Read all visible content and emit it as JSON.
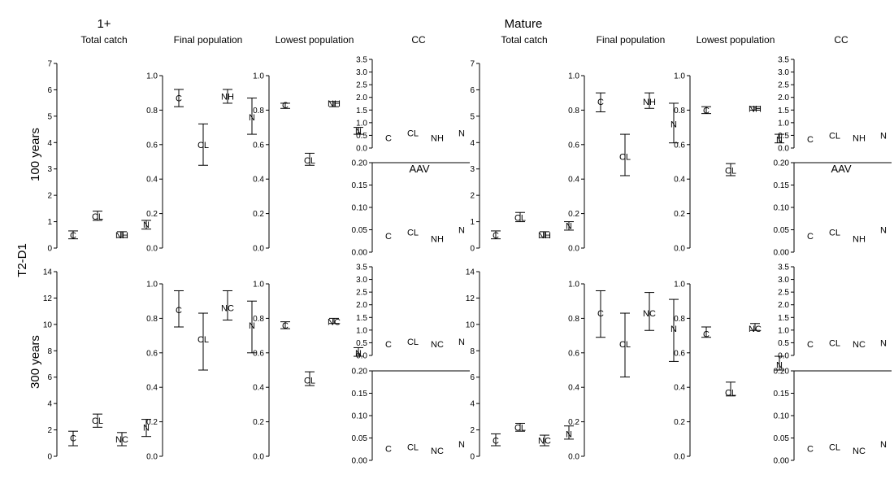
{
  "figure": {
    "group_labels": [
      "1+",
      "Mature"
    ],
    "column_titles": [
      "Total catch",
      "Final population",
      "Lowest population",
      "CC",
      "Total catch",
      "Final population",
      "Lowest population",
      "CC"
    ],
    "row_labels": [
      "100 years",
      "300 years"
    ],
    "side_label": "T2-D1",
    "aav_label": "AAV"
  },
  "chart_data": [
    {
      "type": "scatter",
      "group": "1+",
      "row": "100 years",
      "metric": "Total catch",
      "ylim": [
        0,
        7
      ],
      "yticks": [
        0,
        1,
        2,
        3,
        4,
        5,
        6,
        7
      ],
      "points": [
        {
          "label": "C",
          "y": 0.5,
          "low": 0.35,
          "high": 0.65
        },
        {
          "label": "CL",
          "y": 1.2,
          "low": 1.05,
          "high": 1.4
        },
        {
          "label": "NH",
          "y": 0.5,
          "low": 0.4,
          "high": 0.62
        },
        {
          "label": "N",
          "y": 0.9,
          "low": 0.72,
          "high": 1.05
        }
      ]
    },
    {
      "type": "scatter",
      "group": "1+",
      "row": "100 years",
      "metric": "Final population",
      "ylim": [
        0,
        1
      ],
      "yticks": [
        0.0,
        0.2,
        0.4,
        0.6,
        0.8,
        1.0
      ],
      "points": [
        {
          "label": "C",
          "y": 0.87,
          "low": 0.82,
          "high": 0.92
        },
        {
          "label": "CL",
          "y": 0.6,
          "low": 0.48,
          "high": 0.72
        },
        {
          "label": "NH",
          "y": 0.88,
          "low": 0.84,
          "high": 0.92
        },
        {
          "label": "N",
          "y": 0.76,
          "low": 0.66,
          "high": 0.87
        }
      ]
    },
    {
      "type": "scatter",
      "group": "1+",
      "row": "100 years",
      "metric": "Lowest population",
      "ylim": [
        0,
        1
      ],
      "yticks": [
        0.0,
        0.2,
        0.4,
        0.6,
        0.8,
        1.0
      ],
      "points": [
        {
          "label": "C",
          "y": 0.83,
          "low": 0.81,
          "high": 0.84
        },
        {
          "label": "CL",
          "y": 0.51,
          "low": 0.48,
          "high": 0.55
        },
        {
          "label": "NH",
          "y": 0.84,
          "low": 0.82,
          "high": 0.85
        },
        {
          "label": "N",
          "y": 0.68,
          "low": 0.66,
          "high": 0.7
        }
      ]
    },
    {
      "type": "scatter",
      "group": "1+",
      "row": "100 years",
      "metric": "CC",
      "ylim": [
        0,
        3.5
      ],
      "yticks": [
        0.0,
        0.5,
        1.0,
        1.5,
        2.0,
        2.5,
        3.0,
        3.5
      ],
      "points": [
        {
          "label": "C",
          "y": 0.4
        },
        {
          "label": "CL",
          "y": 0.6
        },
        {
          "label": "NH",
          "y": 0.4
        },
        {
          "label": "N",
          "y": 0.6
        }
      ]
    },
    {
      "type": "scatter",
      "group": "1+",
      "row": "100 years",
      "metric": "AAV",
      "ylim": [
        0,
        0.2
      ],
      "yticks": [
        0.0,
        0.05,
        0.1,
        0.15,
        0.2
      ],
      "points": [
        {
          "label": "C",
          "y": 0.036
        },
        {
          "label": "CL",
          "y": 0.045
        },
        {
          "label": "NH",
          "y": 0.03
        },
        {
          "label": "N",
          "y": 0.05
        }
      ]
    },
    {
      "type": "scatter",
      "group": "Mature",
      "row": "100 years",
      "metric": "Total catch",
      "ylim": [
        0,
        7
      ],
      "yticks": [
        0,
        1,
        2,
        3,
        4,
        5,
        6,
        7
      ],
      "points": [
        {
          "label": "C",
          "y": 0.5,
          "low": 0.35,
          "high": 0.65
        },
        {
          "label": "CL",
          "y": 1.15,
          "low": 1.0,
          "high": 1.35
        },
        {
          "label": "NH",
          "y": 0.5,
          "low": 0.4,
          "high": 0.62
        },
        {
          "label": "N",
          "y": 0.85,
          "low": 0.68,
          "high": 1.0
        }
      ]
    },
    {
      "type": "scatter",
      "group": "Mature",
      "row": "100 years",
      "metric": "Final population",
      "ylim": [
        0,
        1
      ],
      "yticks": [
        0.0,
        0.2,
        0.4,
        0.6,
        0.8,
        1.0
      ],
      "points": [
        {
          "label": "C",
          "y": 0.85,
          "low": 0.79,
          "high": 0.9
        },
        {
          "label": "CL",
          "y": 0.53,
          "low": 0.42,
          "high": 0.66
        },
        {
          "label": "NH",
          "y": 0.85,
          "low": 0.81,
          "high": 0.9
        },
        {
          "label": "N",
          "y": 0.72,
          "low": 0.61,
          "high": 0.84
        }
      ]
    },
    {
      "type": "scatter",
      "group": "Mature",
      "row": "100 years",
      "metric": "Lowest population",
      "ylim": [
        0,
        1
      ],
      "yticks": [
        0.0,
        0.2,
        0.4,
        0.6,
        0.8,
        1.0
      ],
      "points": [
        {
          "label": "C",
          "y": 0.8,
          "low": 0.78,
          "high": 0.82
        },
        {
          "label": "CL",
          "y": 0.45,
          "low": 0.42,
          "high": 0.49
        },
        {
          "label": "NH",
          "y": 0.81,
          "low": 0.8,
          "high": 0.82
        },
        {
          "label": "N",
          "y": 0.63,
          "low": 0.61,
          "high": 0.66
        }
      ]
    },
    {
      "type": "scatter",
      "group": "Mature",
      "row": "100 years",
      "metric": "CC",
      "ylim": [
        0,
        3.5
      ],
      "yticks": [
        0.0,
        0.5,
        1.0,
        1.5,
        2.0,
        2.5,
        3.0,
        3.5
      ],
      "points": [
        {
          "label": "C",
          "y": 0.35
        },
        {
          "label": "CL",
          "y": 0.5
        },
        {
          "label": "NH",
          "y": 0.4
        },
        {
          "label": "N",
          "y": 0.5
        }
      ]
    },
    {
      "type": "scatter",
      "group": "Mature",
      "row": "100 years",
      "metric": "AAV",
      "ylim": [
        0,
        0.2
      ],
      "yticks": [
        0.0,
        0.05,
        0.1,
        0.15,
        0.2
      ],
      "points": [
        {
          "label": "C",
          "y": 0.036
        },
        {
          "label": "CL",
          "y": 0.045
        },
        {
          "label": "NH",
          "y": 0.03
        },
        {
          "label": "N",
          "y": 0.05
        }
      ]
    },
    {
      "type": "scatter",
      "group": "1+",
      "row": "300 years",
      "metric": "Total catch",
      "ylim": [
        0,
        14
      ],
      "yticks": [
        0,
        2,
        4,
        6,
        8,
        10,
        12,
        14
      ],
      "points": [
        {
          "label": "C",
          "y": 1.4,
          "low": 0.8,
          "high": 1.9
        },
        {
          "label": "CL",
          "y": 2.7,
          "low": 2.2,
          "high": 3.2
        },
        {
          "label": "NC",
          "y": 1.3,
          "low": 0.8,
          "high": 1.8
        },
        {
          "label": "N",
          "y": 2.2,
          "low": 1.5,
          "high": 2.8
        }
      ]
    },
    {
      "type": "scatter",
      "group": "1+",
      "row": "300 years",
      "metric": "Final population",
      "ylim": [
        0,
        1
      ],
      "yticks": [
        0.0,
        0.2,
        0.4,
        0.6,
        0.8,
        1.0
      ],
      "points": [
        {
          "label": "C",
          "y": 0.85,
          "low": 0.75,
          "high": 0.96
        },
        {
          "label": "CL",
          "y": 0.68,
          "low": 0.5,
          "high": 0.83
        },
        {
          "label": "NC",
          "y": 0.86,
          "low": 0.79,
          "high": 0.96
        },
        {
          "label": "N",
          "y": 0.76,
          "low": 0.6,
          "high": 0.9
        }
      ]
    },
    {
      "type": "scatter",
      "group": "1+",
      "row": "300 years",
      "metric": "Lowest population",
      "ylim": [
        0,
        1
      ],
      "yticks": [
        0.0,
        0.2,
        0.4,
        0.6,
        0.8,
        1.0
      ],
      "points": [
        {
          "label": "C",
          "y": 0.76,
          "low": 0.74,
          "high": 0.78
        },
        {
          "label": "CL",
          "y": 0.44,
          "low": 0.41,
          "high": 0.49
        },
        {
          "label": "NC",
          "y": 0.78,
          "low": 0.77,
          "high": 0.8
        },
        {
          "label": "N",
          "y": 0.6,
          "low": 0.58,
          "high": 0.63
        }
      ]
    },
    {
      "type": "scatter",
      "group": "1+",
      "row": "300 years",
      "metric": "CC",
      "ylim": [
        0,
        3.5
      ],
      "yticks": [
        0.0,
        0.5,
        1.0,
        1.5,
        2.0,
        2.5,
        3.0,
        3.5
      ],
      "points": [
        {
          "label": "C",
          "y": 0.45
        },
        {
          "label": "CL",
          "y": 0.55
        },
        {
          "label": "NC",
          "y": 0.45
        },
        {
          "label": "N",
          "y": 0.55
        }
      ]
    },
    {
      "type": "scatter",
      "group": "1+",
      "row": "300 years",
      "metric": "AAV",
      "ylim": [
        0,
        0.2
      ],
      "yticks": [
        0.0,
        0.05,
        0.1,
        0.15,
        0.2
      ],
      "points": [
        {
          "label": "C",
          "y": 0.026
        },
        {
          "label": "CL",
          "y": 0.03
        },
        {
          "label": "NC",
          "y": 0.022
        },
        {
          "label": "N",
          "y": 0.036
        }
      ]
    },
    {
      "type": "scatter",
      "group": "Mature",
      "row": "300 years",
      "metric": "Total catch",
      "ylim": [
        0,
        14
      ],
      "yticks": [
        0,
        2,
        4,
        6,
        8,
        10,
        12,
        14
      ],
      "points": [
        {
          "label": "C",
          "y": 1.2,
          "low": 0.8,
          "high": 1.7
        },
        {
          "label": "CL",
          "y": 2.2,
          "low": 1.9,
          "high": 2.5
        },
        {
          "label": "NC",
          "y": 1.2,
          "low": 0.8,
          "high": 1.6
        },
        {
          "label": "N",
          "y": 1.7,
          "low": 1.3,
          "high": 2.3
        }
      ]
    },
    {
      "type": "scatter",
      "group": "Mature",
      "row": "300 years",
      "metric": "Final population",
      "ylim": [
        0,
        1
      ],
      "yticks": [
        0.0,
        0.2,
        0.4,
        0.6,
        0.8,
        1.0
      ],
      "points": [
        {
          "label": "C",
          "y": 0.83,
          "low": 0.69,
          "high": 0.96
        },
        {
          "label": "CL",
          "y": 0.65,
          "low": 0.46,
          "high": 0.83
        },
        {
          "label": "NC",
          "y": 0.83,
          "low": 0.73,
          "high": 0.95
        },
        {
          "label": "N",
          "y": 0.74,
          "low": 0.55,
          "high": 0.91
        }
      ]
    },
    {
      "type": "scatter",
      "group": "Mature",
      "row": "300 years",
      "metric": "Lowest population",
      "ylim": [
        0,
        1
      ],
      "yticks": [
        0.0,
        0.2,
        0.4,
        0.6,
        0.8,
        1.0
      ],
      "points": [
        {
          "label": "C",
          "y": 0.71,
          "low": 0.69,
          "high": 0.75
        },
        {
          "label": "CL",
          "y": 0.37,
          "low": 0.35,
          "high": 0.43
        },
        {
          "label": "NC",
          "y": 0.74,
          "low": 0.73,
          "high": 0.77
        },
        {
          "label": "N",
          "y": 0.53,
          "low": 0.5,
          "high": 0.58
        }
      ]
    },
    {
      "type": "scatter",
      "group": "Mature",
      "row": "300 years",
      "metric": "CC",
      "ylim": [
        0,
        3.5
      ],
      "yticks": [
        0.0,
        0.5,
        1.0,
        1.5,
        2.0,
        2.5,
        3.0,
        3.5
      ],
      "points": [
        {
          "label": "C",
          "y": 0.45
        },
        {
          "label": "CL",
          "y": 0.5
        },
        {
          "label": "NC",
          "y": 0.45
        },
        {
          "label": "N",
          "y": 0.5
        }
      ]
    },
    {
      "type": "scatter",
      "group": "Mature",
      "row": "300 years",
      "metric": "AAV",
      "ylim": [
        0,
        0.2
      ],
      "yticks": [
        0.0,
        0.05,
        0.1,
        0.15,
        0.2
      ],
      "points": [
        {
          "label": "C",
          "y": 0.026
        },
        {
          "label": "CL",
          "y": 0.03
        },
        {
          "label": "NC",
          "y": 0.022
        },
        {
          "label": "N",
          "y": 0.036
        }
      ]
    }
  ]
}
